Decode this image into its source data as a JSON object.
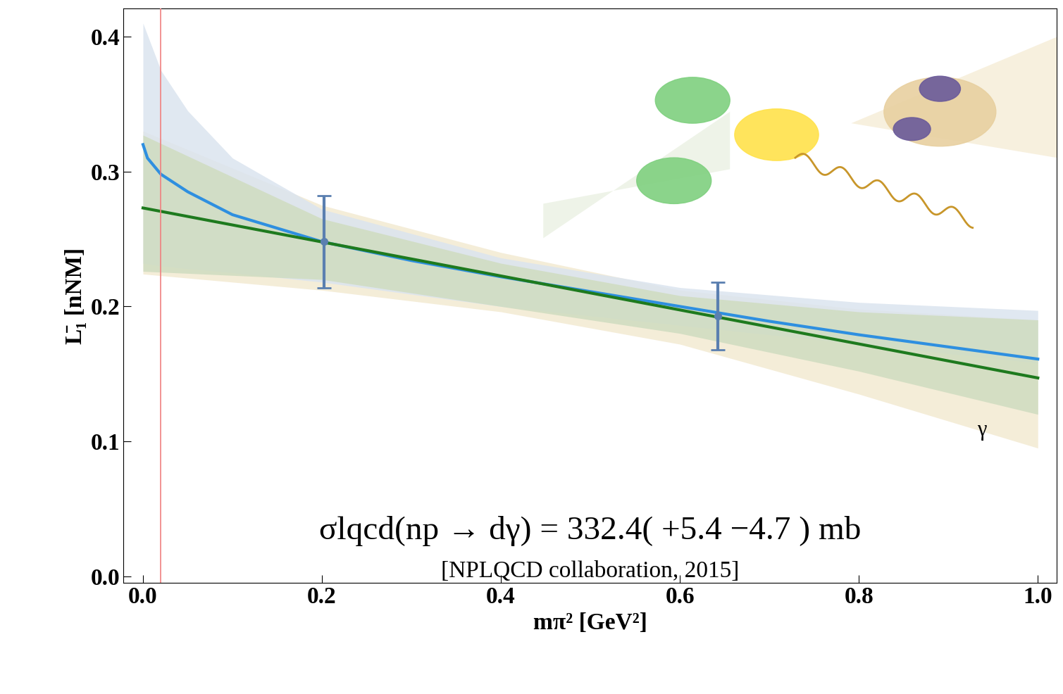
{
  "chart_data": {
    "type": "line",
    "xlabel": "mπ² [GeV²]",
    "ylabel": "L̄₁ [nNM]",
    "xlim": [
      -0.022,
      1.021
    ],
    "ylim": [
      -0.005,
      0.421
    ],
    "xticks": [
      {
        "value": 0,
        "label": "0.0"
      },
      {
        "value": 0.2,
        "label": "0.2"
      },
      {
        "value": 0.4,
        "label": "0.4"
      },
      {
        "value": 0.6,
        "label": "0.6"
      },
      {
        "value": 0.8,
        "label": "0.8"
      },
      {
        "value": 1,
        "label": "1.0"
      }
    ],
    "yticks": [
      {
        "value": 0,
        "label": "0.0"
      },
      {
        "value": 0.1,
        "label": "0.1"
      },
      {
        "value": 0.2,
        "label": "0.2"
      },
      {
        "value": 0.3,
        "label": "0.3"
      },
      {
        "value": 0.4,
        "label": "0.4"
      }
    ],
    "grid": false,
    "bands": [
      {
        "color": "#f3ead2",
        "x": [
          0,
          0.2,
          0.4,
          0.6,
          0.8,
          1.0
        ],
        "lower": [
          0.224,
          0.212,
          0.196,
          0.172,
          0.135,
          0.095
        ],
        "upper": [
          0.33,
          0.275,
          0.24,
          0.212,
          0.198,
          0.19
        ]
      },
      {
        "color": "#dbe4ef",
        "x": [
          0,
          0.02,
          0.05,
          0.1,
          0.2,
          0.4,
          0.6,
          0.8,
          1.0
        ],
        "lower": [
          0.232,
          0.23,
          0.228,
          0.225,
          0.218,
          0.2,
          0.186,
          0.172,
          0.158
        ],
        "upper": [
          0.41,
          0.375,
          0.345,
          0.31,
          0.272,
          0.236,
          0.214,
          0.203,
          0.197
        ]
      },
      {
        "color": "#cfdcc0",
        "x": [
          0,
          0.2,
          0.4,
          0.6,
          0.8,
          1.0
        ],
        "lower": [
          0.226,
          0.22,
          0.2,
          0.18,
          0.152,
          0.12
        ],
        "upper": [
          0.327,
          0.265,
          0.232,
          0.208,
          0.196,
          0.19
        ]
      }
    ],
    "series": [
      {
        "color": "#2e8fe0",
        "x": [
          0,
          0.005,
          0.02,
          0.05,
          0.1,
          0.2,
          0.3,
          0.4,
          0.5,
          0.6,
          0.7,
          0.8,
          0.9,
          1.0
        ],
        "values": [
          0.32,
          0.31,
          0.298,
          0.285,
          0.268,
          0.248,
          0.234,
          0.222,
          0.211,
          0.2,
          0.189,
          0.179,
          0.17,
          0.161
        ]
      },
      {
        "color": "#1e7a1e",
        "x": [
          0,
          1.0
        ],
        "values": [
          0.273,
          0.147
        ]
      }
    ],
    "points": {
      "color": "#5a7fb0",
      "x": [
        0.2025,
        0.642
      ],
      "values": [
        0.248,
        0.193
      ],
      "errors": [
        0.034,
        0.025
      ]
    },
    "vline": {
      "x": 0.0195,
      "color": "#f08080"
    },
    "annotations": [
      {
        "text": "σlqcd(np → dγ) = 332.4( +5.4 −4.7 ) mb",
        "x": 0.5,
        "y": 0.09,
        "size": 34
      },
      {
        "text": "[NPLQCD collaboration, 2015]",
        "x": 0.5,
        "y": 0.02,
        "size": 24
      },
      {
        "text": "γ",
        "x": 0.92,
        "y": 0.265,
        "size": 22
      }
    ]
  }
}
